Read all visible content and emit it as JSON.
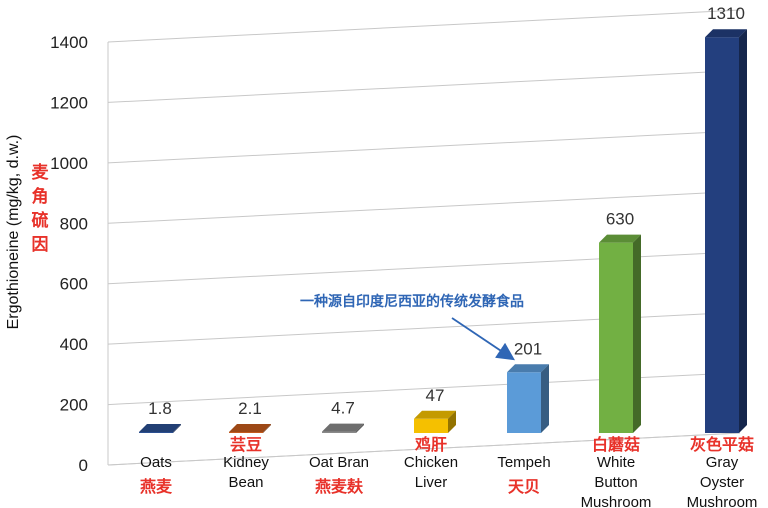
{
  "chart_data": {
    "type": "bar",
    "ylabel": "Ergothioneine (mg/kg, d.w.)",
    "ylabel_cn": [
      "麦",
      "角",
      "硫",
      "因"
    ],
    "ylim": [
      0,
      1400
    ],
    "yticks": [
      0,
      200,
      400,
      600,
      800,
      1000,
      1200,
      1400
    ],
    "grid": true,
    "categories": [
      {
        "label": [
          "Oats"
        ],
        "label_cn": "燕麦",
        "value": 1.8,
        "value_label": "1.8",
        "color": "#2b4f91"
      },
      {
        "label": [
          "Kidney",
          "Bean"
        ],
        "label_cn": "芸豆",
        "value": 2.1,
        "value_label": "2.1",
        "color": "#c45a1c"
      },
      {
        "label": [
          "Oat Bran"
        ],
        "label_cn": "燕麦麸",
        "value": 4.7,
        "value_label": "4.7",
        "color": "#8a8a8a"
      },
      {
        "label": [
          "Chicken",
          "Liver"
        ],
        "label_cn": "鸡肝",
        "value": 47,
        "value_label": "47",
        "color": "#f5c000"
      },
      {
        "label": [
          "Tempeh"
        ],
        "label_cn": "天贝",
        "value": 201,
        "value_label": "201",
        "color": "#5b9bd8"
      },
      {
        "label": [
          "White",
          "Button",
          "Mushroom"
        ],
        "label_cn": "白蘑菇",
        "value": 630,
        "value_label": "630",
        "color": "#72b043"
      },
      {
        "label": [
          "Gray",
          "Oyster",
          "Mushroom"
        ],
        "label_cn": "灰色平菇",
        "value": 1310,
        "value_label": "1310",
        "color": "#233f7e"
      }
    ],
    "annotation": {
      "text": "一种源自印度尼西亚的传统发酵食品",
      "target": "Tempeh"
    }
  }
}
